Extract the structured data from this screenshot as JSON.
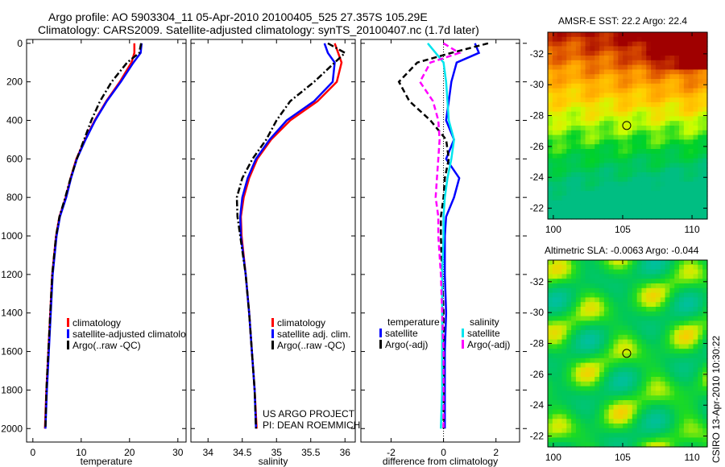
{
  "header": {
    "line1": "Argo profile: AO 5903304_11 05-Apr-2010 20100405_525 27.357S 105.29E",
    "line2": "Climatology: CARS2009. Satellite-adjusted climatology: synTS_20100407.nc (1.7d later)"
  },
  "credits": {
    "project": "US ARGO PROJECT",
    "pi": "PI: DEAN ROEMMICH",
    "stamp": "CSIRO 13-Apr-2010 10:30:22"
  },
  "legends": {
    "temperature": [
      "climatology",
      "satellite-adjusted climatology",
      "Argo(..raw -QC)"
    ],
    "salinity": [
      "climatology",
      "satellite adj. clim.",
      "Argo(..raw -QC)"
    ],
    "difference": {
      "temp_header": "temperature",
      "sal_header": "salinity",
      "temp_items": [
        "satellite",
        "Argo(-adj)"
      ],
      "sal_items": [
        "satellite",
        "Argo(-adj)"
      ]
    }
  },
  "colors": {
    "climatology": "#ff0000",
    "satellite": "#0000ff",
    "argo": "#000000",
    "sal_satellite": "#00e5ee",
    "sal_argo": "#ff00ff"
  },
  "chart_data": [
    {
      "type": "line",
      "id": "temperature",
      "xlabel": "temperature",
      "ylabel": "depth",
      "xlim": [
        -1.3,
        31.7
      ],
      "ylim": [
        2070,
        -20
      ],
      "xticks": [
        0,
        10,
        20,
        30
      ],
      "yticks": [
        0,
        200,
        400,
        600,
        800,
        1000,
        1200,
        1400,
        1600,
        1800,
        2000
      ],
      "depth": [
        0,
        50,
        100,
        200,
        300,
        400,
        500,
        600,
        700,
        800,
        900,
        1000,
        1200,
        1400,
        1600,
        1800,
        2000
      ],
      "series": [
        {
          "name": "climatology",
          "color": "#ff0000",
          "style": "solid",
          "values": [
            21.0,
            21.0,
            20.4,
            18.0,
            15.2,
            12.8,
            10.8,
            9.0,
            7.8,
            6.8,
            5.5,
            4.8,
            4.0,
            3.6,
            3.2,
            2.8,
            2.5
          ]
        },
        {
          "name": "satellite-adjusted climatology",
          "color": "#0000ff",
          "style": "solid",
          "values": [
            22.5,
            22.3,
            20.8,
            18.2,
            15.3,
            12.9,
            10.9,
            9.1,
            7.9,
            6.9,
            5.6,
            4.9,
            4.1,
            3.7,
            3.3,
            2.9,
            2.6
          ]
        },
        {
          "name": "Argo(..raw -QC)",
          "color": "#000000",
          "style": "dashdot",
          "values": [
            22.4,
            22.0,
            19.5,
            16.3,
            13.9,
            12.1,
            10.6,
            9.1,
            7.8,
            6.7,
            5.5,
            4.8,
            4.0,
            3.6,
            3.2,
            2.8,
            2.6
          ]
        }
      ]
    },
    {
      "type": "line",
      "id": "salinity",
      "xlabel": "salinity",
      "xlim": [
        33.75,
        36.15
      ],
      "ylim": [
        2070,
        -20
      ],
      "xticks": [
        34,
        34.5,
        35,
        35.5,
        36
      ],
      "yticks": [
        0,
        200,
        400,
        600,
        800,
        1000,
        1200,
        1400,
        1600,
        1800,
        2000
      ],
      "depth": [
        0,
        50,
        100,
        200,
        300,
        400,
        500,
        600,
        700,
        800,
        900,
        1000,
        1200,
        1400,
        1600,
        1800,
        2000
      ],
      "series": [
        {
          "name": "climatology",
          "color": "#ff0000",
          "style": "solid",
          "values": [
            35.85,
            35.9,
            35.95,
            35.88,
            35.6,
            35.2,
            34.92,
            34.72,
            34.6,
            34.52,
            34.48,
            34.49,
            34.55,
            34.6,
            34.64,
            34.68,
            34.71
          ]
        },
        {
          "name": "satellite adj. clim.",
          "color": "#0000ff",
          "style": "solid",
          "values": [
            35.7,
            35.75,
            35.85,
            35.82,
            35.55,
            35.15,
            34.9,
            34.7,
            34.58,
            34.5,
            34.47,
            34.48,
            34.55,
            34.6,
            34.64,
            34.68,
            34.7
          ]
        },
        {
          "name": "Argo(..raw -QC)",
          "color": "#000000",
          "style": "dashdot",
          "values": [
            35.75,
            36.0,
            35.85,
            35.55,
            35.2,
            35.0,
            34.85,
            34.65,
            34.5,
            34.42,
            34.43,
            34.47,
            34.55,
            34.6,
            34.64,
            34.68,
            34.7
          ]
        }
      ]
    },
    {
      "type": "line",
      "id": "difference",
      "xlabel": "difference from climatology",
      "xlim": [
        -3.15,
        2.9
      ],
      "ylim": [
        2070,
        -20
      ],
      "xticks": [
        -2,
        0,
        2
      ],
      "zero_line": true,
      "yticks": [
        0,
        200,
        400,
        600,
        800,
        1000,
        1200,
        1400,
        1600,
        1800,
        2000
      ],
      "depth": [
        0,
        50,
        100,
        200,
        300,
        400,
        500,
        600,
        700,
        800,
        900,
        1000,
        1200,
        1400,
        1600,
        1800,
        2000
      ],
      "series": [
        {
          "name": "temperature satellite",
          "color": "#0000ff",
          "style": "solid",
          "values": [
            1.2,
            1.35,
            0.5,
            0.3,
            0.2,
            0.1,
            0.4,
            0.1,
            0.6,
            0.4,
            0.1,
            0.05,
            0.05,
            0.1,
            0.05,
            0.05,
            0.05
          ]
        },
        {
          "name": "temperature Argo(-adj)",
          "color": "#000000",
          "style": "dashed",
          "values": [
            1.7,
            0.3,
            -1.0,
            -1.7,
            -1.3,
            -0.5,
            0.1,
            0.2,
            0.05,
            0.0,
            -0.1,
            -0.1,
            -0.05,
            0.0,
            0.0,
            0.0,
            0.0
          ]
        },
        {
          "name": "salinity satellite",
          "color": "#00e5ee",
          "style": "solid",
          "values": [
            -0.6,
            -0.3,
            0.0,
            0.1,
            0.15,
            0.2,
            0.4,
            0.3,
            0.15,
            0.05,
            0.0,
            0.0,
            -0.05,
            -0.05,
            -0.05,
            -0.05,
            -0.1
          ]
        },
        {
          "name": "salinity Argo(-adj)",
          "color": "#ff00ff",
          "style": "dashed",
          "values": [
            0.0,
            0.6,
            -0.5,
            -0.9,
            -0.4,
            -0.2,
            -0.15,
            -0.2,
            -0.25,
            -0.3,
            -0.2,
            -0.2,
            -0.1,
            -0.05,
            0.0,
            0.0,
            0.0
          ]
        }
      ]
    },
    {
      "type": "heatmap",
      "id": "sst-map",
      "title": "AMSR-E SST: 22.2 Argo: 22.4",
      "xlim": [
        99.6,
        111.1
      ],
      "ylim": [
        -21.3,
        -33.4
      ],
      "xticks": [
        100,
        105,
        110
      ],
      "yticks": [
        -22,
        -24,
        -26,
        -28,
        -30,
        -32
      ],
      "marker": {
        "lon": 105.29,
        "lat": -27.357
      }
    },
    {
      "type": "heatmap",
      "id": "sla-map",
      "title": "Altimetric SLA: -0.0063 Argo: -0.044",
      "xlim": [
        99.6,
        111.1
      ],
      "ylim": [
        -21.3,
        -33.4
      ],
      "xticks": [
        100,
        105,
        110
      ],
      "yticks": [
        -22,
        -24,
        -26,
        -28,
        -30,
        -32
      ],
      "marker": {
        "lon": 105.29,
        "lat": -27.357
      }
    }
  ]
}
